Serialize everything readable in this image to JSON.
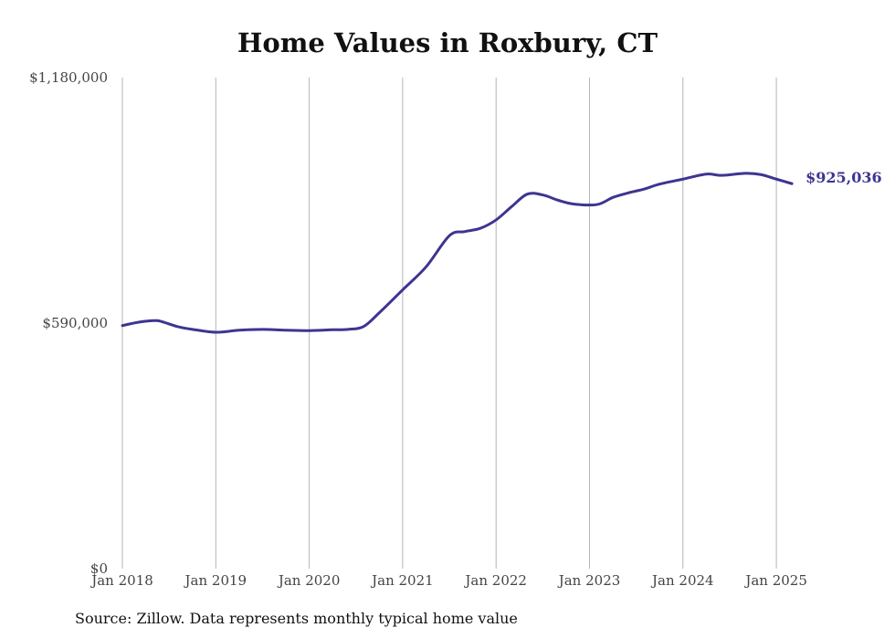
{
  "chart_data": {
    "type": "line",
    "title": "Home Values in Roxbury, CT",
    "xlabel": "",
    "ylabel": "",
    "ylim": [
      0,
      1180000
    ],
    "y_ticks": [
      0,
      590000,
      1180000
    ],
    "y_tick_labels": [
      "$0",
      "$590,000",
      "$1,180,000"
    ],
    "x_ticks": [
      "2018-01",
      "2019-01",
      "2020-01",
      "2021-01",
      "2022-01",
      "2023-01",
      "2024-01",
      "2025-01"
    ],
    "x_tick_labels": [
      "Jan 2018",
      "Jan 2019",
      "Jan 2020",
      "Jan 2021",
      "Jan 2022",
      "Jan 2023",
      "Jan 2024",
      "Jan 2025"
    ],
    "grid": "vertical",
    "line_color": "#3d3591",
    "series": [
      {
        "points": [
          [
            "2018-01",
            584000
          ],
          [
            "2018-03",
            592000
          ],
          [
            "2018-05",
            596000
          ],
          [
            "2018-06",
            594000
          ],
          [
            "2018-08",
            582000
          ],
          [
            "2018-10",
            575000
          ],
          [
            "2019-01",
            568000
          ],
          [
            "2019-04",
            573000
          ],
          [
            "2019-07",
            575000
          ],
          [
            "2019-10",
            573000
          ],
          [
            "2020-01",
            572000
          ],
          [
            "2020-04",
            574000
          ],
          [
            "2020-06",
            575000
          ],
          [
            "2020-08",
            582000
          ],
          [
            "2020-10",
            615000
          ],
          [
            "2021-01",
            670000
          ],
          [
            "2021-04",
            725000
          ],
          [
            "2021-07",
            800000
          ],
          [
            "2021-09",
            810000
          ],
          [
            "2021-11",
            818000
          ],
          [
            "2022-01",
            838000
          ],
          [
            "2022-03",
            870000
          ],
          [
            "2022-05",
            900000
          ],
          [
            "2022-07",
            898000
          ],
          [
            "2022-09",
            885000
          ],
          [
            "2022-11",
            876000
          ],
          [
            "2023-02",
            875000
          ],
          [
            "2023-04",
            892000
          ],
          [
            "2023-06",
            903000
          ],
          [
            "2023-08",
            912000
          ],
          [
            "2023-10",
            924000
          ],
          [
            "2024-01",
            936000
          ],
          [
            "2024-04",
            948000
          ],
          [
            "2024-06",
            945000
          ],
          [
            "2024-09",
            950000
          ],
          [
            "2024-11",
            947000
          ],
          [
            "2025-01",
            936000
          ],
          [
            "2025-03",
            925036
          ]
        ]
      }
    ],
    "end_label": "$925,036"
  },
  "source_note": "Source: Zillow. Data represents monthly typical home value"
}
